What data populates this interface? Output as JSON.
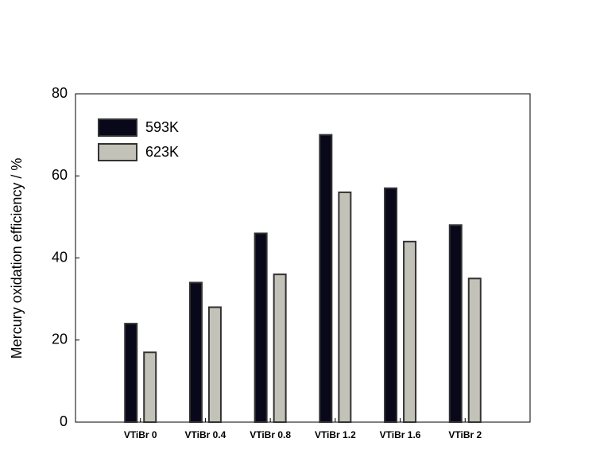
{
  "chart_data": {
    "type": "bar",
    "ylabel": "Mercury oxidation efficiency / %",
    "categories": [
      "VTiBr 0",
      "VTiBr 0.4",
      "VTiBr 0.8",
      "VTiBr 1.2",
      "VTiBr 1.6",
      "VTiBr 2"
    ],
    "series": [
      {
        "name": "593K",
        "color": "#08081a",
        "values": [
          24,
          34,
          46,
          70,
          57,
          48
        ]
      },
      {
        "name": "623K",
        "color": "#c2c2b8",
        "values": [
          17,
          28,
          36,
          56,
          44,
          35
        ]
      }
    ],
    "ylim": [
      0,
      80
    ],
    "yticks": [
      0,
      20,
      40,
      60,
      80
    ],
    "legend": "upper left"
  }
}
